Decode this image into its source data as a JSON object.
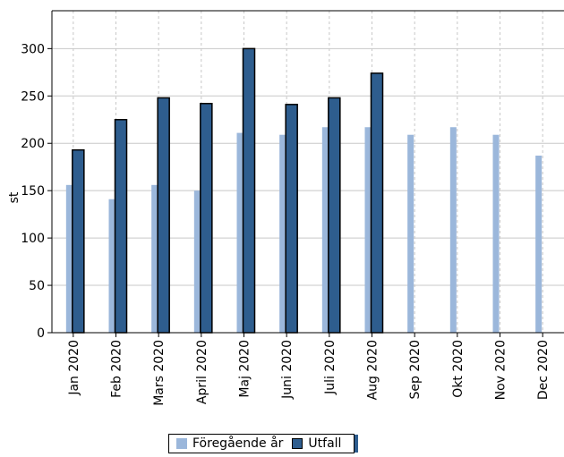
{
  "chart_data": {
    "type": "bar",
    "title": "",
    "xlabel": "",
    "ylabel": "st",
    "ylim": [
      0,
      340
    ],
    "yticks": [
      0,
      50,
      100,
      150,
      200,
      250,
      300
    ],
    "grid": true,
    "legend_position": "bottom",
    "categories": [
      "Jan 2020",
      "Feb 2020",
      "Mars 2020",
      "April 2020",
      "Maj 2020",
      "Juni 2020",
      "Juli 2020",
      "Aug 2020",
      "Sep 2020",
      "Okt 2020",
      "Nov 2020",
      "Dec 2020"
    ],
    "series": [
      {
        "name": "Föregående år",
        "color": "#9bb7db",
        "values": [
          156,
          141,
          156,
          150,
          211,
          209,
          217,
          217,
          209,
          217,
          209,
          187
        ]
      },
      {
        "name": "Utfall",
        "color": "#2e5d8e",
        "values": [
          193,
          225,
          248,
          242,
          300,
          241,
          248,
          274,
          null,
          null,
          null,
          null
        ]
      }
    ]
  }
}
